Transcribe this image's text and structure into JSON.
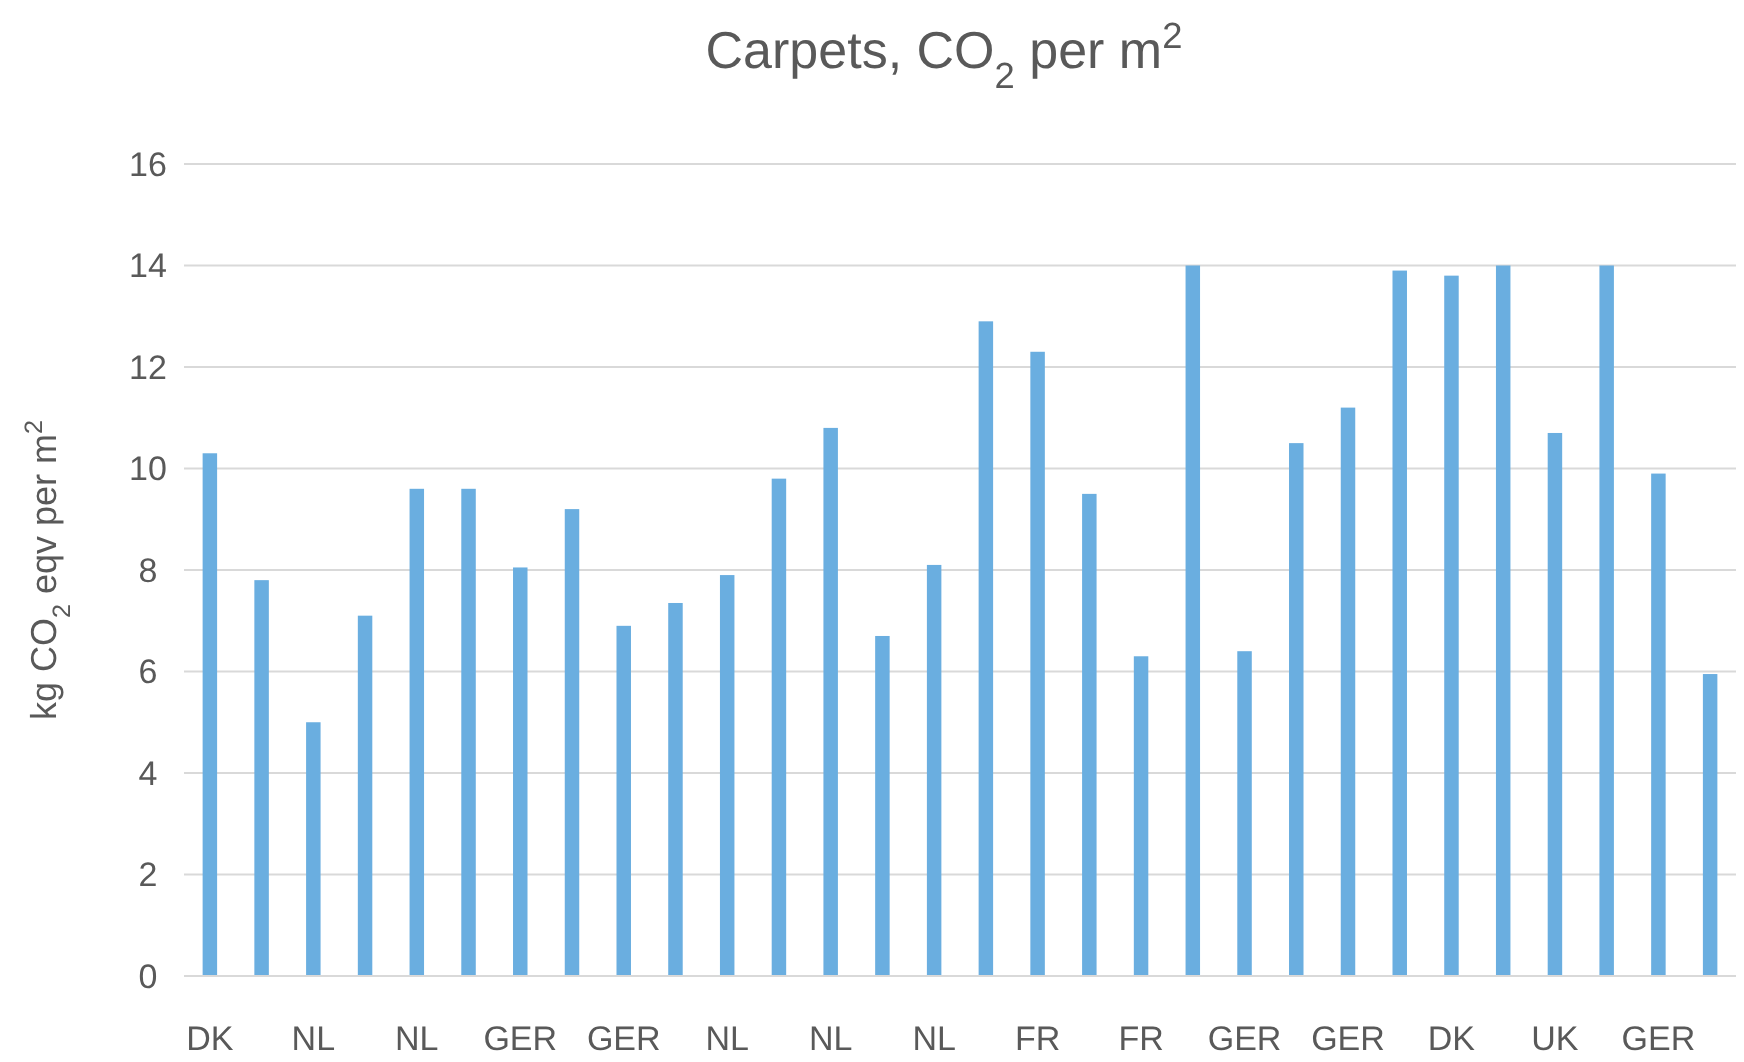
{
  "chart_data": {
    "type": "bar",
    "title": "Carpets, CO$_{2}$ per m$^{2}$",
    "ylabel": "kg CO$_{2}$ eqv per m$^{2}$",
    "categories": [
      "DK",
      null,
      "NL",
      null,
      "NL",
      null,
      "GER",
      null,
      "GER",
      null,
      "NL",
      null,
      "NL",
      null,
      "NL",
      null,
      "FR",
      null,
      "FR",
      null,
      "GER",
      null,
      "GER",
      null,
      "DK",
      null,
      "UK",
      null,
      "GER",
      null
    ],
    "values": [
      10.3,
      7.8,
      5.0,
      7.1,
      9.6,
      9.6,
      8.05,
      9.2,
      6.9,
      7.35,
      7.9,
      9.8,
      10.8,
      6.7,
      8.1,
      12.9,
      12.3,
      9.5,
      6.3,
      14.0,
      6.4,
      10.5,
      11.2,
      13.9,
      13.8,
      14.0,
      10.7,
      14.0,
      9.9,
      5.95
    ],
    "color": "#6aaee0",
    "ylim": [
      0,
      16
    ],
    "yticks": [
      0,
      2,
      4,
      6,
      8,
      10,
      12,
      14,
      16
    ],
    "grid": "y"
  }
}
